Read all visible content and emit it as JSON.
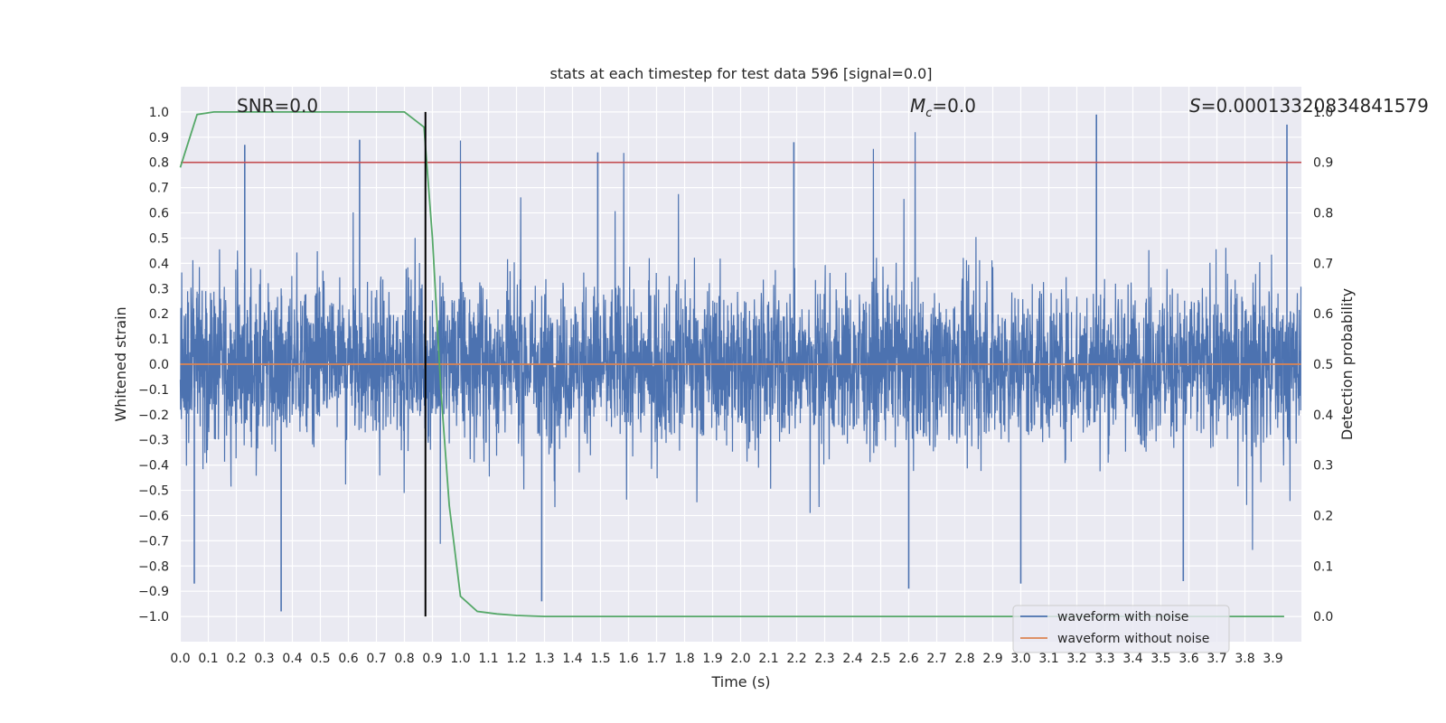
{
  "chart_data": {
    "type": "line",
    "title": "stats at each timestep for test data 596 [signal=0.0]",
    "xlabel": "Time (s)",
    "ylabel_left": "Whitened strain",
    "ylabel_right": "Detection probability",
    "xlim": [
      0.0,
      4.0
    ],
    "ylim_left": [
      -1.1,
      1.1
    ],
    "ylim_right": [
      -0.05,
      1.05
    ],
    "x_ticks": [
      "0.0",
      "0.1",
      "0.2",
      "0.3",
      "0.4",
      "0.5",
      "0.6",
      "0.7",
      "0.8",
      "0.9",
      "1.0",
      "1.1",
      "1.2",
      "1.3",
      "1.4",
      "1.5",
      "1.6",
      "1.7",
      "1.8",
      "1.9",
      "2.0",
      "2.1",
      "2.2",
      "2.3",
      "2.4",
      "2.5",
      "2.6",
      "2.7",
      "2.8",
      "2.9",
      "3.0",
      "3.1",
      "3.2",
      "3.3",
      "3.4",
      "3.5",
      "3.6",
      "3.7",
      "3.8",
      "3.9"
    ],
    "y_ticks_left": [
      "1.0",
      "0.9",
      "0.8",
      "0.7",
      "0.6",
      "0.5",
      "0.4",
      "0.3",
      "0.2",
      "0.1",
      "0.0",
      "−0.1",
      "−0.2",
      "−0.3",
      "−0.4",
      "−0.5",
      "−0.6",
      "−0.7",
      "−0.8",
      "−0.9",
      "−1.0"
    ],
    "y_ticks_right": [
      "1.0",
      "0.9",
      "0.8",
      "0.7",
      "0.6",
      "0.5",
      "0.4",
      "0.3",
      "0.2",
      "0.1",
      "0.0"
    ],
    "grid": true,
    "legend_position": "lower-right",
    "annotations": {
      "snr": "SNR=0.0",
      "mc_symbol": "M",
      "mc_sub": "c",
      "mc_value": "=0.0",
      "s_symbol": "S",
      "s_value": "=0.00013320834841579"
    },
    "threshold": {
      "axis": "right",
      "value": 0.9,
      "color": "#c44e52"
    },
    "marker_line": {
      "x": 0.875,
      "from": -1.0,
      "to": 1.0,
      "color": "#000000"
    },
    "series": [
      {
        "name": "waveform with noise",
        "axis": "left",
        "color": "#4c72b0",
        "kind": "noise",
        "amplitude_range": [
          -1.0,
          1.0
        ],
        "notable_peaks": [
          {
            "x": 0.23,
            "y": 0.87
          },
          {
            "x": 0.64,
            "y": 0.89
          },
          {
            "x": 1.49,
            "y": 0.84
          },
          {
            "x": 2.19,
            "y": 0.88
          },
          {
            "x": 3.27,
            "y": 0.99
          },
          {
            "x": 3.95,
            "y": 0.95
          },
          {
            "x": 0.36,
            "y": -0.98
          },
          {
            "x": 1.29,
            "y": -0.94
          },
          {
            "x": 2.6,
            "y": -0.89
          },
          {
            "x": 3.0,
            "y": -0.87
          },
          {
            "x": 3.58,
            "y": -0.86
          },
          {
            "x": 0.05,
            "y": -0.87
          }
        ]
      },
      {
        "name": "waveform without noise",
        "axis": "left",
        "color": "#dd8452",
        "x": [
          0.0,
          4.0
        ],
        "y": [
          0.0,
          0.0
        ]
      },
      {
        "name": "",
        "axis": "right",
        "color": "#55a868",
        "x": [
          0.0,
          0.06,
          0.12,
          0.2,
          0.3,
          0.5,
          0.7,
          0.8,
          0.87,
          0.9,
          0.93,
          0.96,
          1.0,
          1.06,
          1.13,
          1.2,
          1.3,
          1.5,
          2.0,
          3.0,
          3.94
        ],
        "y": [
          0.89,
          0.995,
          1.0,
          1.0,
          1.0,
          1.0,
          1.0,
          1.0,
          0.97,
          0.75,
          0.45,
          0.22,
          0.04,
          0.01,
          0.005,
          0.002,
          0.0,
          0.0,
          0.0,
          0.0,
          0.0
        ]
      }
    ]
  }
}
